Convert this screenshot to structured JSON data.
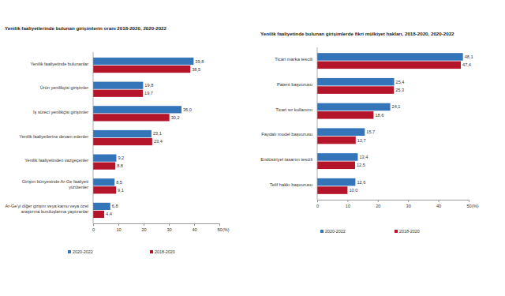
{
  "chart_data": [
    {
      "type": "bar",
      "orientation": "horizontal",
      "title": "Yenilik faaliyetlerinde bulunan girişimlerin oranı 2018-2020, 2020-2022",
      "categories": [
        "Yenilik faaliyetinde bulunanlar",
        "Ürün yenilikçisi girişimler",
        "İş süreci yenilikçisi girişimler",
        "Yenilik faaliyetlerine devam edenler",
        "Yenilik faaliyetinden vazgeçenler",
        "Girişim bünyesinde Ar-Ge faaliyeti yürütenler",
        "Ar-Ge'yi diğer girişim veya kamu veya özel araştırma kuruluşlarına yaptıranlar"
      ],
      "series": [
        {
          "name": "2020-2022",
          "color": "#3474b8",
          "values": [
            39.8,
            19.8,
            35.0,
            23.1,
            9.2,
            8.5,
            6.8
          ],
          "value_labels": [
            "39,8",
            "19,8",
            "35,0",
            "23,1",
            "9,2",
            "8,5",
            "6,8"
          ]
        },
        {
          "name": "2018-2020",
          "color": "#b5152b",
          "values": [
            38.5,
            19.7,
            30.2,
            23.4,
            8.8,
            9.1,
            4.4
          ],
          "value_labels": [
            "38,5",
            "19,7",
            "30,2",
            "23,4",
            "8,8",
            "9,1",
            "4,4"
          ]
        }
      ],
      "xlim": [
        0,
        50
      ],
      "xticks": [
        0,
        10,
        20,
        30,
        40,
        50
      ],
      "xlabel": "(%)",
      "data_labels": true,
      "legend": "bottom",
      "grid": false
    },
    {
      "type": "bar",
      "orientation": "horizontal",
      "title": "Yenilik faaliyetinde bulunan girişimlerde fikri mülkiyet hakları, 2018-2020, 2020-2022",
      "categories": [
        "Ticari marka tescili",
        "Patent başvurusu",
        "Ticari sır kullanımı",
        "Faydalı model başvurusu",
        "Endüstriyel tasarım tescili",
        "Telif hakkı başvurusu"
      ],
      "series": [
        {
          "name": "2020-2022",
          "color": "#3474b8",
          "values": [
            48.1,
            25.4,
            24.1,
            15.7,
            13.4,
            12.6
          ],
          "value_labels": [
            "48,1",
            "25,4",
            "24,1",
            "15,7",
            "13,4",
            "12,6"
          ]
        },
        {
          "name": "2018-2020",
          "color": "#b5152b",
          "values": [
            47.4,
            25.3,
            18.6,
            12.7,
            12.5,
            10.0
          ],
          "value_labels": [
            "47,4",
            "25,3",
            "18,6",
            "12,7",
            "12,5",
            "10,0"
          ]
        }
      ],
      "xlim": [
        0,
        50
      ],
      "xticks": [
        0,
        10,
        20,
        30,
        40,
        50
      ],
      "xlabel": "(%)",
      "data_labels": true,
      "legend": "bottom",
      "grid": false
    }
  ]
}
